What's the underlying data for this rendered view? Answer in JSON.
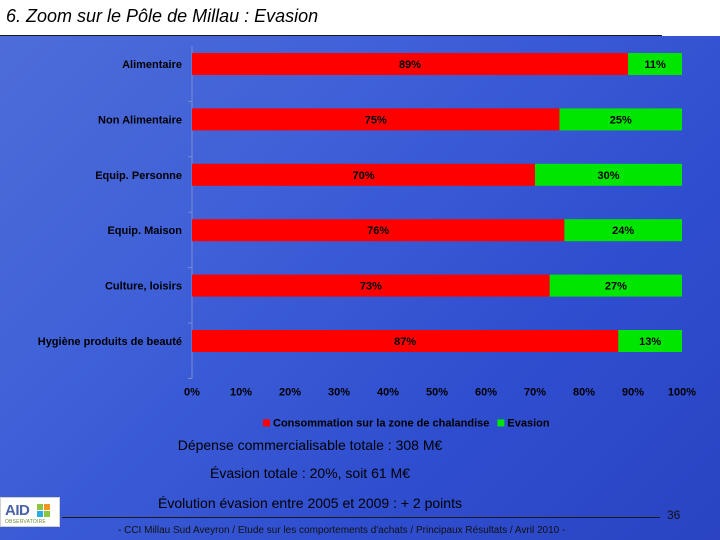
{
  "header": {
    "title": "6. Zoom sur le Pôle de Millau : Evasion"
  },
  "chart_data": {
    "type": "bar",
    "orientation": "horizontal",
    "stacked": true,
    "categories": [
      "Alimentaire",
      "Non Alimentaire",
      "Equip. Personne",
      "Equip. Maison",
      "Culture, loisirs",
      "Hygiène produits de beauté"
    ],
    "series": [
      {
        "name": "Consommation sur la zone de chalandise",
        "color": "#ff0000",
        "values": [
          89,
          75,
          70,
          76,
          73,
          87
        ],
        "labels": [
          "89%",
          "75%",
          "70%",
          "76%",
          "73%",
          "87%"
        ]
      },
      {
        "name": "Evasion",
        "color": "#00e600",
        "values": [
          11,
          25,
          30,
          24,
          27,
          13
        ],
        "labels": [
          "11%",
          "25%",
          "30%",
          "24%",
          "27%",
          "13%"
        ]
      }
    ],
    "xlim": [
      0,
      100
    ],
    "xticks": [
      "0%",
      "10%",
      "20%",
      "30%",
      "40%",
      "50%",
      "60%",
      "70%",
      "80%",
      "90%",
      "100%"
    ],
    "legend_position": "bottom"
  },
  "captions": {
    "line1": "Dépense commercialisable totale : 308 M€",
    "line2": "Évasion totale : 20%, soit 61 M€",
    "line3": "Évolution évasion entre 2005 et 2009 : + 2 points"
  },
  "footer": {
    "text": "- CCI Millau Sud Aveyron / Etude sur les comportements d'achats / Principaux Résultats / Avril 2010 -",
    "page_number": "36"
  },
  "logo": {
    "text": "AID",
    "subtext": "OBSERVATOIRE"
  }
}
